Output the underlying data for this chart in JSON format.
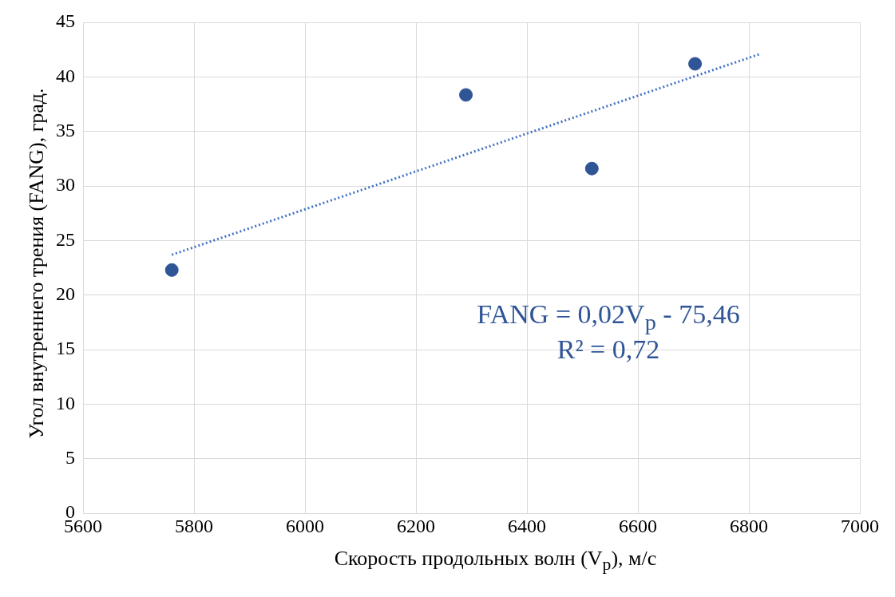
{
  "chart_data": {
    "type": "scatter",
    "xlabel": "Скорость продольных волн (V$_{p}$), м/с",
    "ylabel": "Угол внутреннего трения (FANG), град.",
    "x": [
      5760,
      6290,
      6517,
      6703
    ],
    "values": [
      22.3,
      38.35,
      31.6,
      41.2
    ],
    "color": "#2f5597",
    "marker": "circle",
    "series": [
      {
        "type": "line",
        "x": [
          5760,
          6820
        ],
        "values": [
          23.7,
          42.1
        ],
        "color": "#4472c4",
        "line_style": "dotted",
        "marker": "none"
      }
    ],
    "xlim": [
      5600,
      7000
    ],
    "xticks": [
      5600,
      5800,
      6000,
      6200,
      6400,
      6600,
      6800,
      7000
    ],
    "ylim": [
      0,
      45
    ],
    "yticks": [
      0,
      5,
      10,
      15,
      20,
      25,
      30,
      35,
      40,
      45
    ],
    "grid": true,
    "legend": false,
    "annotations": [
      "FANG = 0,02V$_{p}$ - 75,46",
      "R² = 0,72"
    ]
  }
}
